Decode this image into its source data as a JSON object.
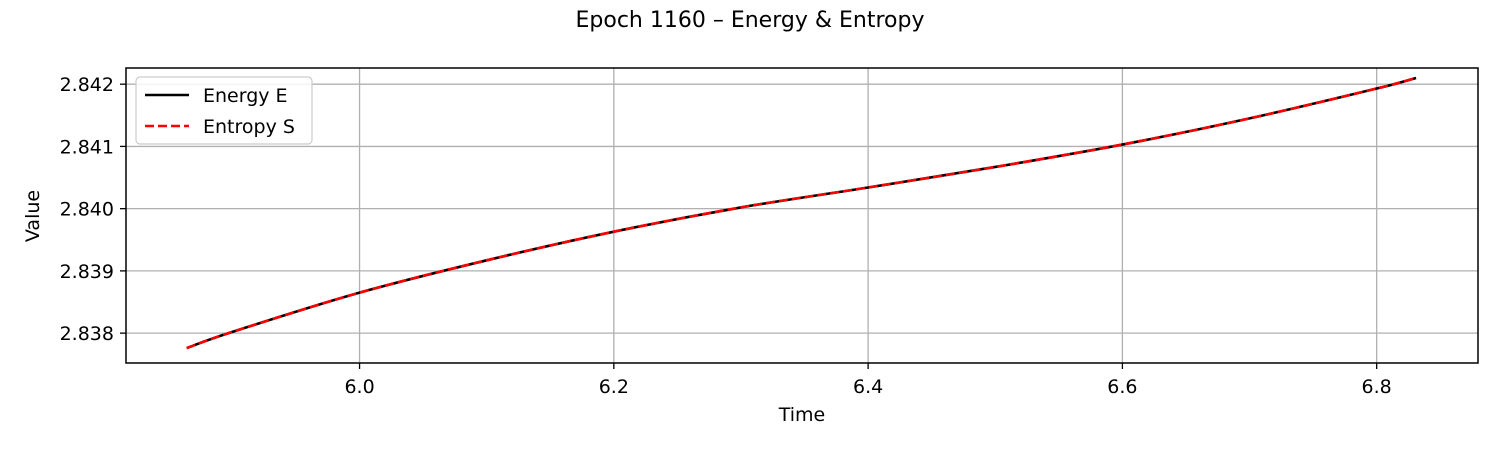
{
  "chart_data": {
    "type": "line",
    "title": "Epoch 1160 – Energy & Entropy",
    "xlabel": "Time",
    "ylabel": "Value",
    "xlim": [
      5.8163,
      6.8797
    ],
    "ylim": [
      2.83752,
      2.84226
    ],
    "xticks": [
      6.0,
      6.2,
      6.4,
      6.6,
      6.8
    ],
    "xtick_labels": [
      "6.0",
      "6.2",
      "6.4",
      "6.6",
      "6.8"
    ],
    "yticks": [
      2.838,
      2.839,
      2.84,
      2.841,
      2.842
    ],
    "ytick_labels": [
      "2.838",
      "2.839",
      "2.840",
      "2.841",
      "2.842"
    ],
    "grid": true,
    "legend_position": "top-left",
    "series": [
      {
        "name": "Energy E",
        "color": "#000000",
        "style": "solid",
        "x": [
          5.864,
          5.9,
          6.0,
          6.1,
          6.2,
          6.3,
          6.4,
          6.5,
          6.6,
          6.7,
          6.8,
          6.831
        ],
        "y": [
          2.83776,
          2.83802,
          2.83865,
          2.83917,
          2.83963,
          2.84002,
          2.84034,
          2.84067,
          2.84103,
          2.84145,
          2.84193,
          2.8421
        ]
      },
      {
        "name": "Entropy S",
        "color": "#ff0000",
        "style": "dashed",
        "x": [
          5.864,
          5.9,
          6.0,
          6.1,
          6.2,
          6.3,
          6.4,
          6.5,
          6.6,
          6.7,
          6.8,
          6.831
        ],
        "y": [
          2.83776,
          2.83802,
          2.83865,
          2.83917,
          2.83963,
          2.84002,
          2.84034,
          2.84067,
          2.84103,
          2.84145,
          2.84193,
          2.8421
        ]
      }
    ]
  }
}
